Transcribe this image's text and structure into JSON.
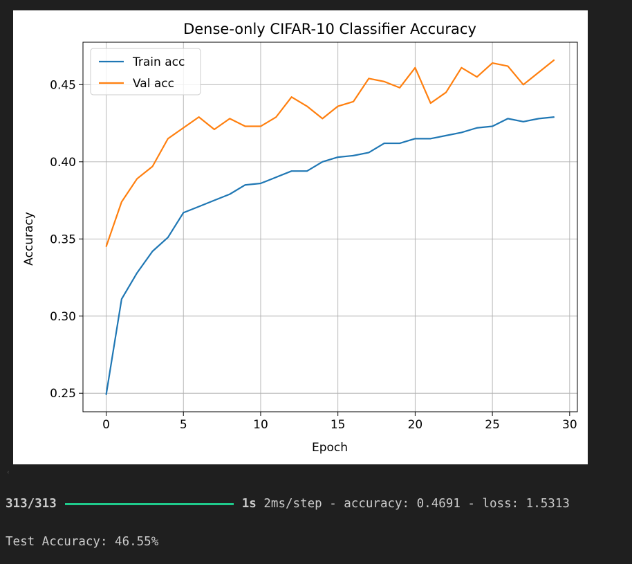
{
  "colors": {
    "train": "#1f77b4",
    "val": "#ff7f0e",
    "progress": "#1fcb8c",
    "console_bg": "#1f1f1f",
    "console_text": "#cccccc"
  },
  "scroll_indicator": "‹",
  "chart_data": {
    "type": "line",
    "title": "Dense-only CIFAR-10 Classifier Accuracy",
    "xlabel": "Epoch",
    "ylabel": "Accuracy",
    "xlim": [
      -1.5,
      30.5
    ],
    "ylim": [
      0.238,
      0.4775
    ],
    "xticks": [
      0,
      5,
      10,
      15,
      20,
      25,
      30
    ],
    "yticks": [
      0.25,
      0.3,
      0.35,
      0.4,
      0.45
    ],
    "ytick_labels": [
      "0.25",
      "0.30",
      "0.35",
      "0.40",
      "0.45"
    ],
    "grid": true,
    "legend_position": "upper-left",
    "x": [
      0,
      1,
      2,
      3,
      4,
      5,
      6,
      7,
      8,
      9,
      10,
      11,
      12,
      13,
      14,
      15,
      16,
      17,
      18,
      19,
      20,
      21,
      22,
      23,
      24,
      25,
      26,
      27,
      28,
      29
    ],
    "series": [
      {
        "name": "Train acc",
        "color": "#1f77b4",
        "values": [
          0.249,
          0.311,
          0.328,
          0.342,
          0.351,
          0.367,
          0.371,
          0.375,
          0.379,
          0.385,
          0.386,
          0.39,
          0.394,
          0.394,
          0.4,
          0.403,
          0.404,
          0.406,
          0.412,
          0.412,
          0.415,
          0.415,
          0.417,
          0.419,
          0.422,
          0.423,
          0.428,
          0.426,
          0.428,
          0.429
        ]
      },
      {
        "name": "Val acc",
        "color": "#ff7f0e",
        "values": [
          0.345,
          0.374,
          0.389,
          0.397,
          0.415,
          0.422,
          0.429,
          0.421,
          0.428,
          0.423,
          0.423,
          0.429,
          0.442,
          0.436,
          0.428,
          0.436,
          0.439,
          0.454,
          0.452,
          0.448,
          0.461,
          0.438,
          0.445,
          0.461,
          0.455,
          0.464,
          0.462,
          0.45,
          0.458,
          0.466
        ]
      }
    ]
  },
  "console": {
    "progress_count": "313/313",
    "progress_fraction": 1.0,
    "time": "1s",
    "step_info": " 2ms/step - accuracy: 0.4691 - loss: 1.5313",
    "result": "Test Accuracy: 46.55%"
  }
}
